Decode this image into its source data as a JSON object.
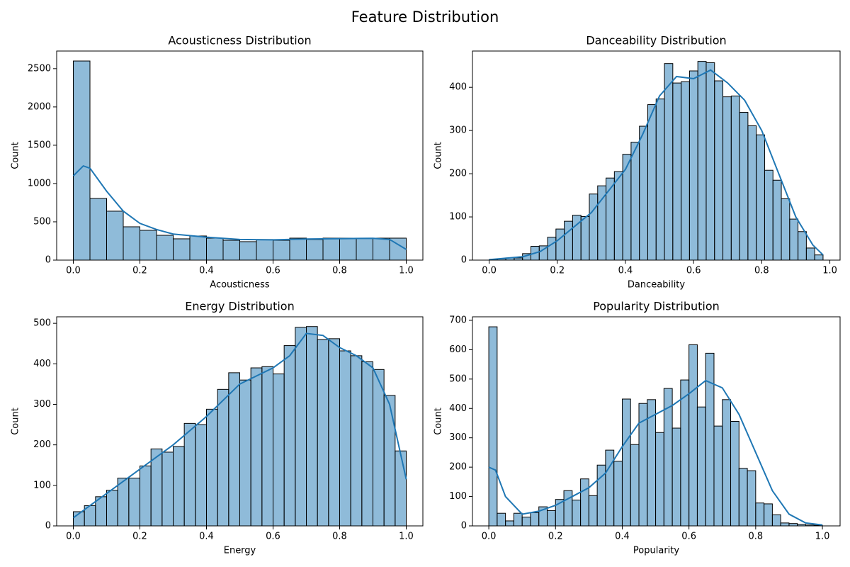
{
  "title": "Feature Distribution",
  "chart_data": [
    {
      "type": "histogram",
      "title": "Acousticness Distribution",
      "xlabel": "Acousticness",
      "ylabel": "Count",
      "color": "#1f77b4",
      "bins": [
        0,
        0.05,
        0.1,
        0.15,
        0.2,
        0.25,
        0.3,
        0.35,
        0.4,
        0.45,
        0.5,
        0.55,
        0.6,
        0.65,
        0.7,
        0.75,
        0.8,
        0.85,
        0.9,
        0.95,
        1
      ],
      "counts": [
        2600,
        805,
        639,
        435,
        389,
        324,
        278,
        315,
        287,
        259,
        241,
        269,
        259,
        287,
        269,
        287,
        287,
        287,
        287,
        287
      ],
      "kde": {
        "x": [
          0,
          0.03,
          0.05,
          0.1,
          0.15,
          0.2,
          0.25,
          0.3,
          0.4,
          0.5,
          0.6,
          0.7,
          0.8,
          0.9,
          0.95,
          1
        ],
        "y": [
          1100,
          1230,
          1200,
          900,
          640,
          480,
          400,
          340,
          300,
          270,
          265,
          275,
          280,
          285,
          270,
          140
        ]
      },
      "xlim": [
        -0.05,
        1.05
      ],
      "ylim": [
        0,
        2730
      ],
      "xticks": [
        {
          "value": 0,
          "label": "0.0"
        },
        0.2,
        0.4,
        0.6,
        0.8,
        {
          "value": 1,
          "label": "1.0"
        }
      ],
      "yticks": [
        0,
        500,
        1000,
        1500,
        2000,
        2500
      ]
    },
    {
      "type": "histogram",
      "title": "Danceability Distribution",
      "xlabel": "Danceability",
      "ylabel": "Count",
      "color": "#1f77b4",
      "bins": [
        0,
        0.0245,
        0.049,
        0.0735,
        0.098,
        0.1225,
        0.147,
        0.1715,
        0.196,
        0.2205,
        0.245,
        0.2695,
        0.294,
        0.3185,
        0.343,
        0.3675,
        0.392,
        0.4165,
        0.441,
        0.4655,
        0.49,
        0.5145,
        0.539,
        0.5635,
        0.588,
        0.6125,
        0.637,
        0.6615,
        0.686,
        0.7105,
        0.735,
        0.7595,
        0.784,
        0.8085,
        0.833,
        0.8575,
        0.882,
        0.9065,
        0.931,
        0.9555,
        0.98
      ],
      "counts": [
        1,
        3,
        5,
        5,
        15,
        32,
        33,
        53,
        72,
        90,
        104,
        101,
        153,
        172,
        190,
        205,
        245,
        273,
        310,
        360,
        373,
        455,
        410,
        413,
        438,
        460,
        457,
        415,
        378,
        380,
        342,
        311,
        290,
        208,
        185,
        142,
        95,
        66,
        28,
        12
      ],
      "kde": {
        "x": [
          0,
          0.1,
          0.15,
          0.2,
          0.3,
          0.4,
          0.45,
          0.5,
          0.55,
          0.6,
          0.65,
          0.7,
          0.75,
          0.8,
          0.85,
          0.9,
          0.95,
          0.98
        ],
        "y": [
          1,
          8,
          20,
          45,
          110,
          210,
          290,
          380,
          425,
          420,
          440,
          410,
          370,
          300,
          200,
          100,
          35,
          12
        ]
      },
      "xlim": [
        -0.049,
        1.03
      ],
      "ylim": [
        0,
        484
      ],
      "xticks": [
        {
          "value": 0,
          "label": "0.0"
        },
        0.2,
        0.4,
        0.6,
        0.8,
        {
          "value": 1,
          "label": "1.0"
        }
      ],
      "yticks": [
        0,
        100,
        200,
        300,
        400
      ]
    },
    {
      "type": "histogram",
      "title": "Energy Distribution",
      "xlabel": "Energy",
      "ylabel": "Count",
      "color": "#1f77b4",
      "bins": [
        0,
        0.0333,
        0.0667,
        0.1,
        0.1333,
        0.1667,
        0.2,
        0.2333,
        0.2667,
        0.3,
        0.3333,
        0.3667,
        0.4,
        0.4333,
        0.4667,
        0.5,
        0.5333,
        0.5667,
        0.6,
        0.6333,
        0.6667,
        0.7,
        0.7333,
        0.7667,
        0.8,
        0.8333,
        0.8667,
        0.9,
        0.9333,
        0.9667,
        1
      ],
      "counts": [
        35,
        50,
        72,
        88,
        118,
        118,
        148,
        190,
        182,
        196,
        253,
        250,
        288,
        337,
        378,
        360,
        390,
        393,
        375,
        445,
        490,
        492,
        460,
        462,
        432,
        420,
        405,
        386,
        322,
        185
      ],
      "kde": {
        "x": [
          0,
          0.1,
          0.2,
          0.3,
          0.4,
          0.5,
          0.6,
          0.65,
          0.7,
          0.75,
          0.8,
          0.85,
          0.9,
          0.95,
          1
        ],
        "y": [
          20,
          80,
          140,
          200,
          270,
          350,
          390,
          420,
          475,
          470,
          440,
          420,
          390,
          300,
          115
        ]
      },
      "xlim": [
        -0.05,
        1.05
      ],
      "ylim": [
        0,
        516
      ],
      "xticks": [
        {
          "value": 0,
          "label": "0.0"
        },
        0.2,
        0.4,
        0.6,
        0.8,
        {
          "value": 1,
          "label": "1.0"
        }
      ],
      "yticks": [
        0,
        100,
        200,
        300,
        400,
        500
      ]
    },
    {
      "type": "histogram",
      "title": "Popularity Distribution",
      "xlabel": "Popularity",
      "ylabel": "Count",
      "color": "#1f77b4",
      "bins": [
        0,
        0.025,
        0.05,
        0.075,
        0.1,
        0.125,
        0.15,
        0.175,
        0.2,
        0.225,
        0.25,
        0.275,
        0.3,
        0.325,
        0.35,
        0.375,
        0.4,
        0.425,
        0.45,
        0.475,
        0.5,
        0.525,
        0.55,
        0.575,
        0.6,
        0.625,
        0.65,
        0.675,
        0.7,
        0.725,
        0.75,
        0.775,
        0.8,
        0.825,
        0.85,
        0.875,
        0.9,
        0.925,
        0.95,
        0.975,
        1
      ],
      "counts": [
        678,
        43,
        17,
        43,
        30,
        45,
        65,
        52,
        90,
        120,
        88,
        160,
        103,
        207,
        258,
        220,
        432,
        277,
        417,
        430,
        318,
        468,
        333,
        497,
        617,
        405,
        588,
        340,
        430,
        356,
        196,
        188,
        78,
        75,
        38,
        10,
        8,
        5,
        3,
        2
      ],
      "kde": {
        "x": [
          0,
          0.02,
          0.05,
          0.1,
          0.15,
          0.2,
          0.25,
          0.3,
          0.35,
          0.4,
          0.45,
          0.5,
          0.55,
          0.6,
          0.65,
          0.7,
          0.75,
          0.8,
          0.85,
          0.9,
          0.95,
          1
        ],
        "y": [
          200,
          190,
          100,
          40,
          50,
          70,
          100,
          130,
          180,
          270,
          350,
          380,
          410,
          450,
          495,
          470,
          380,
          250,
          120,
          40,
          10,
          3
        ]
      },
      "xlim": [
        -0.049,
        1.053
      ],
      "ylim": [
        0,
        712
      ],
      "xticks": [
        {
          "value": 0,
          "label": "0.0"
        },
        0.2,
        0.4,
        0.6,
        0.8,
        {
          "value": 1,
          "label": "1.0"
        }
      ],
      "yticks": [
        0,
        100,
        200,
        300,
        400,
        500,
        600,
        700
      ]
    }
  ]
}
